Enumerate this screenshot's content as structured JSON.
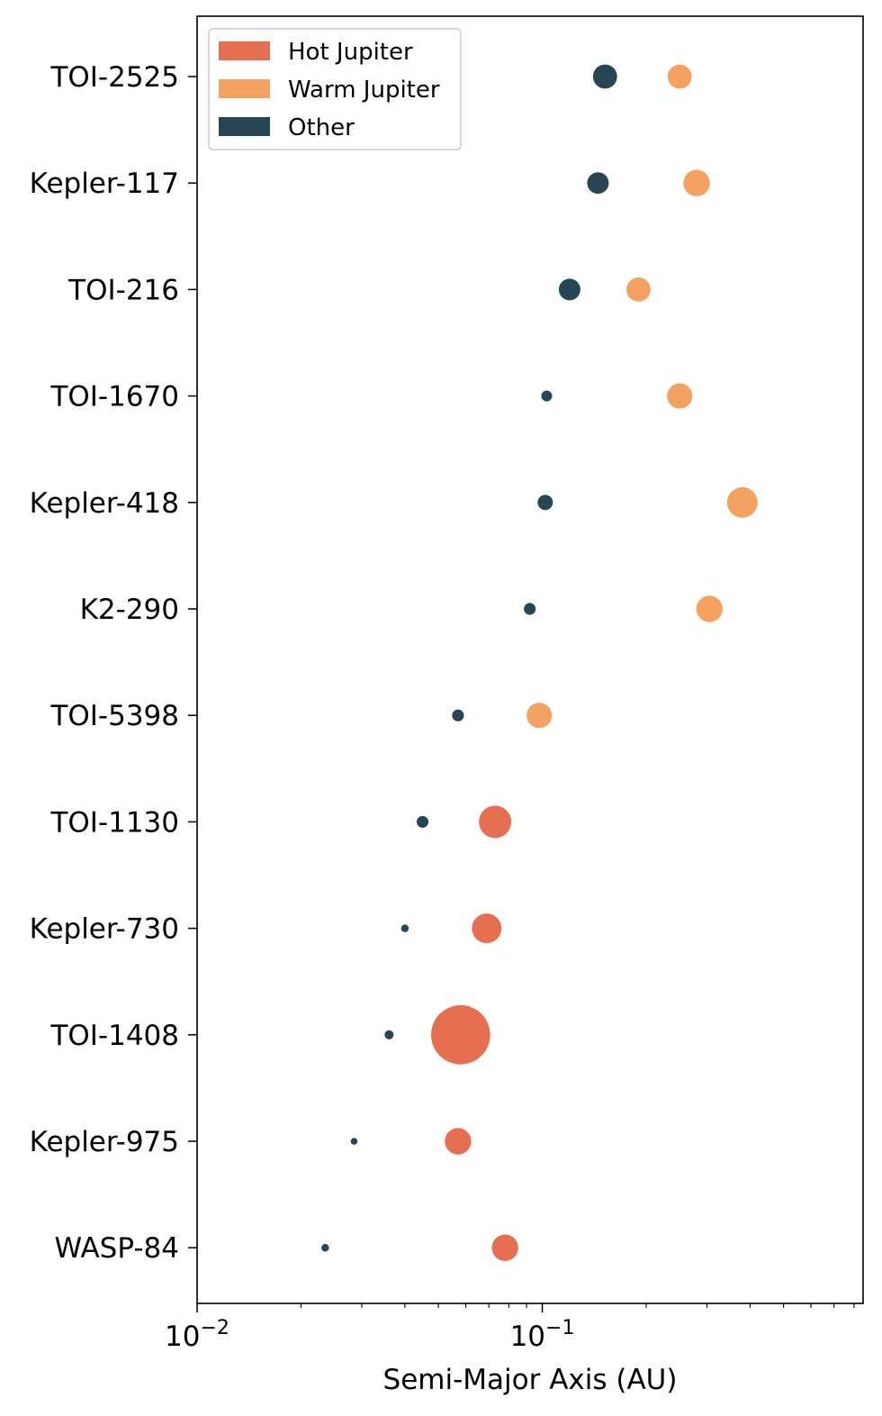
{
  "chart_data": {
    "type": "scatter",
    "title": "",
    "xlabel": "Semi-Major Axis (AU)",
    "ylabel": "",
    "xscale": "log",
    "xlim": [
      0.01,
      0.85
    ],
    "x_ticks": [
      {
        "value": 0.01,
        "base": "10",
        "exp": "−2"
      },
      {
        "value": 0.1,
        "base": "10",
        "exp": "−1"
      }
    ],
    "grid": false,
    "legend_position": "top-left",
    "legend": [
      {
        "key": "hot",
        "label": "Hot Jupiter",
        "color": "#E76F51"
      },
      {
        "key": "warm",
        "label": "Warm Jupiter",
        "color": "#F4A261"
      },
      {
        "key": "other",
        "label": "Other",
        "color": "#264653"
      }
    ],
    "systems": [
      "TOI-2525",
      "Kepler-117",
      "TOI-216",
      "TOI-1670",
      "Kepler-418",
      "K2-290",
      "TOI-5398",
      "TOI-1130",
      "Kepler-730",
      "TOI-1408",
      "Kepler-975",
      "WASP-84"
    ],
    "points": [
      {
        "system": "TOI-2525",
        "category": "other",
        "a": 0.152,
        "size": 5
      },
      {
        "system": "TOI-2525",
        "category": "warm",
        "a": 0.25,
        "size": 5
      },
      {
        "system": "Kepler-117",
        "category": "other",
        "a": 0.145,
        "size": 4
      },
      {
        "system": "Kepler-117",
        "category": "warm",
        "a": 0.28,
        "size": 6
      },
      {
        "system": "TOI-216",
        "category": "other",
        "a": 0.12,
        "size": 4
      },
      {
        "system": "TOI-216",
        "category": "warm",
        "a": 0.19,
        "size": 5
      },
      {
        "system": "TOI-1670",
        "category": "other",
        "a": 0.103,
        "size": 1
      },
      {
        "system": "TOI-1670",
        "category": "warm",
        "a": 0.25,
        "size": 5.5
      },
      {
        "system": "Kepler-418",
        "category": "other",
        "a": 0.102,
        "size": 2
      },
      {
        "system": "Kepler-418",
        "category": "warm",
        "a": 0.38,
        "size": 8
      },
      {
        "system": "K2-290",
        "category": "other",
        "a": 0.092,
        "size": 1.2
      },
      {
        "system": "K2-290",
        "category": "warm",
        "a": 0.305,
        "size": 6
      },
      {
        "system": "TOI-5398",
        "category": "other",
        "a": 0.057,
        "size": 1.2
      },
      {
        "system": "TOI-5398",
        "category": "warm",
        "a": 0.098,
        "size": 5.5
      },
      {
        "system": "TOI-1130",
        "category": "other",
        "a": 0.045,
        "size": 1.2
      },
      {
        "system": "TOI-1130",
        "category": "hot",
        "a": 0.073,
        "size": 9
      },
      {
        "system": "Kepler-730",
        "category": "other",
        "a": 0.04,
        "size": 0.5
      },
      {
        "system": "Kepler-730",
        "category": "hot",
        "a": 0.069,
        "size": 7.5
      },
      {
        "system": "TOI-1408",
        "category": "other",
        "a": 0.036,
        "size": 0.7
      },
      {
        "system": "TOI-1408",
        "category": "hot",
        "a": 0.058,
        "size": 30
      },
      {
        "system": "Kepler-975",
        "category": "other",
        "a": 0.0285,
        "size": 0.4
      },
      {
        "system": "Kepler-975",
        "category": "hot",
        "a": 0.057,
        "size": 6
      },
      {
        "system": "WASP-84",
        "category": "other",
        "a": 0.0235,
        "size": 0.5
      },
      {
        "system": "WASP-84",
        "category": "hot",
        "a": 0.078,
        "size": 6
      }
    ]
  }
}
